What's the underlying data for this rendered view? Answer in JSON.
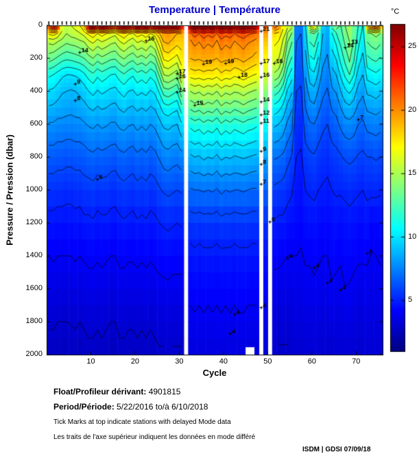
{
  "title": "Temperature | Température",
  "colors": {
    "title": "#0000cc",
    "contour": "#000000",
    "background": "#ffffff"
  },
  "axes": {
    "x": {
      "label": "Cycle",
      "ticks": [
        10,
        20,
        30,
        40,
        50,
        60,
        70
      ],
      "min": 0,
      "max": 76
    },
    "y": {
      "label": "Pressure / Pression (dbar)",
      "ticks": [
        0,
        200,
        400,
        600,
        800,
        1000,
        1200,
        1400,
        1600,
        1800,
        2000
      ],
      "min": 0,
      "max": 2000
    }
  },
  "colorbar": {
    "label": "°C",
    "ticks": [
      25,
      20,
      15,
      10,
      5
    ]
  },
  "footer": {
    "float_label": "Float/Profileur dérivant:",
    "float_value": "4901815",
    "period_label": "Period/Période:",
    "period_value": "5/22/2016  to/à  6/10/2018",
    "note_en": "Tick Marks at top indicate stations with delayed Mode data",
    "note_fr": "Les traits de l'axe supérieur indiquent les données en mode différé",
    "credit": "ISDM | GDSI  07/09/18"
  },
  "chart_data": {
    "type": "heatmap",
    "title": "Temperature | Température",
    "xlabel": "Cycle",
    "ylabel": "Pressure / Pression (dbar)",
    "x_range": [
      1,
      76
    ],
    "y_range": [
      0,
      2000
    ],
    "temp_range_c": [
      1,
      26.8
    ],
    "contour_interval_c": 1,
    "delayed_mode_ticks": "all cycles with data",
    "missing_cycles": [
      32,
      49,
      51
    ],
    "partial_missing": {
      "cycles": [
        46,
        47
      ],
      "below_dbar": 1955
    },
    "pressure_levels": [
      0,
      50,
      100,
      200,
      300,
      400,
      500,
      600,
      800,
      1000,
      1200,
      1400,
      1700,
      2000
    ],
    "profiles": [
      [
        22,
        17.2,
        15.2,
        13.5,
        11.2,
        9.9,
        8.9,
        7.9,
        6.5,
        5.5,
        4.7,
        4.0,
        3.3,
        2.7
      ],
      [
        24,
        17.5,
        15.4,
        13.2,
        11.0,
        9.8,
        8.8,
        7.9,
        6.5,
        5.5,
        4.7,
        4.1,
        3.3,
        2.7
      ],
      [
        23,
        16.8,
        15.0,
        12.8,
        10.6,
        9.5,
        8.6,
        7.7,
        6.4,
        5.4,
        4.6,
        4.0,
        3.2,
        2.6
      ],
      [
        16.5,
        15.8,
        14.6,
        12.4,
        10.2,
        9.1,
        8.5,
        7.7,
        6.4,
        5.4,
        4.6,
        4.0,
        3.2,
        2.6
      ],
      [
        15.5,
        15.0,
        14.2,
        12.2,
        10.0,
        9.0,
        8.4,
        7.6,
        6.3,
        5.3,
        4.6,
        4.0,
        3.2,
        2.6
      ],
      [
        16,
        15.4,
        14.4,
        12.3,
        10.0,
        8.9,
        8.3,
        7.6,
        6.3,
        5.3,
        4.6,
        4.0,
        3.2,
        2.7
      ],
      [
        16.5,
        15.6,
        14.5,
        12.5,
        10.1,
        9.0,
        8.4,
        7.7,
        6.4,
        5.4,
        4.7,
        4.1,
        3.3,
        2.7
      ],
      [
        17,
        15.9,
        14.8,
        12.7,
        10.3,
        9.2,
        8.5,
        7.7,
        6.4,
        5.4,
        4.6,
        4.0,
        3.2,
        2.6
      ],
      [
        19,
        16.4,
        15.0,
        13.0,
        10.8,
        9.5,
        8.7,
        7.9,
        6.5,
        5.6,
        4.8,
        4.1,
        3.3,
        2.7
      ],
      [
        25,
        17.2,
        15.8,
        13.6,
        11.4,
        10.0,
        9.0,
        8.1,
        6.7,
        5.6,
        4.8,
        4.2,
        3.4,
        2.8
      ],
      [
        26,
        17.8,
        16.2,
        14.0,
        11.8,
        10.3,
        9.2,
        8.2,
        6.8,
        5.7,
        4.9,
        4.2,
        3.4,
        2.8
      ],
      [
        24,
        16.9,
        15.6,
        13.4,
        11.2,
        9.9,
        8.9,
        8.0,
        6.6,
        5.5,
        4.7,
        4.1,
        3.3,
        2.7
      ],
      [
        26,
        17.5,
        16.0,
        13.8,
        11.6,
        10.2,
        9.1,
        8.2,
        6.7,
        5.6,
        4.8,
        4.2,
        3.4,
        2.8
      ],
      [
        25,
        17.0,
        15.7,
        13.5,
        11.3,
        10.0,
        9.0,
        8.1,
        6.6,
        5.6,
        4.8,
        4.1,
        3.3,
        2.7
      ],
      [
        24,
        16.6,
        15.3,
        13.2,
        11.0,
        9.8,
        8.8,
        7.9,
        6.5,
        5.4,
        4.7,
        4.0,
        3.2,
        2.6
      ],
      [
        23,
        16.3,
        15.1,
        13.1,
        10.9,
        9.7,
        8.7,
        7.9,
        6.4,
        5.4,
        4.6,
        4.0,
        3.2,
        2.6
      ],
      [
        25,
        17.3,
        15.9,
        13.7,
        11.5,
        10.1,
        9.1,
        8.2,
        6.7,
        5.6,
        4.8,
        4.2,
        3.4,
        2.8
      ],
      [
        26,
        17.9,
        16.3,
        14.1,
        11.9,
        10.4,
        9.3,
        8.3,
        6.8,
        5.7,
        4.9,
        4.2,
        3.4,
        2.8
      ],
      [
        25,
        17.1,
        15.8,
        13.6,
        11.4,
        10.0,
        9.0,
        8.1,
        6.6,
        5.6,
        4.8,
        4.1,
        3.3,
        2.7
      ],
      [
        24,
        16.7,
        15.4,
        13.3,
        11.1,
        9.9,
        8.9,
        8.0,
        6.5,
        5.5,
        4.7,
        4.1,
        3.3,
        2.7
      ],
      [
        26,
        17.6,
        16.1,
        13.9,
        11.7,
        10.3,
        9.2,
        8.3,
        6.8,
        5.7,
        4.9,
        4.2,
        3.4,
        2.8
      ],
      [
        25,
        17.2,
        15.8,
        13.6,
        11.4,
        10.1,
        9.0,
        8.1,
        6.6,
        5.6,
        4.8,
        4.1,
        3.3,
        2.7
      ],
      [
        26,
        17.7,
        16.2,
        14.0,
        11.8,
        10.3,
        9.2,
        8.3,
        6.8,
        5.7,
        4.9,
        4.2,
        3.4,
        2.8
      ],
      [
        24,
        16.8,
        15.5,
        13.4,
        11.2,
        9.9,
        8.9,
        8.0,
        6.5,
        5.5,
        4.7,
        4.1,
        3.3,
        2.7
      ],
      [
        25,
        17.4,
        16.0,
        13.8,
        11.6,
        10.2,
        9.1,
        8.2,
        6.7,
        5.6,
        4.8,
        4.2,
        3.4,
        2.8
      ],
      [
        26,
        18.5,
        17.5,
        15.5,
        13.2,
        11.2,
        9.7,
        8.7,
        7.1,
        5.9,
        5.0,
        4.3,
        3.5,
        2.9
      ],
      [
        26.5,
        19.5,
        19.0,
        17.2,
        15.0,
        12.5,
        10.5,
        9.2,
        7.5,
        6.1,
        5.1,
        4.4,
        3.5,
        2.9
      ],
      [
        26,
        19.8,
        19.2,
        17.4,
        15.2,
        12.7,
        10.7,
        9.3,
        7.6,
        6.2,
        5.2,
        4.4,
        3.6,
        3.0
      ],
      [
        26.5,
        19.4,
        18.8,
        17.0,
        14.8,
        12.4,
        10.4,
        9.1,
        7.4,
        6.1,
        5.1,
        4.3,
        3.5,
        2.9
      ],
      [
        26,
        19.0,
        18.4,
        16.6,
        14.4,
        12.0,
        10.2,
        9.0,
        7.3,
        6.0,
        5.0,
        4.3,
        3.5,
        2.9
      ],
      [
        24,
        19.0,
        18.4,
        17.6,
        16.2,
        13.8,
        11.6,
        9.9,
        7.6,
        6.1,
        5.1,
        4.3,
        3.5,
        2.9
      ],
      null,
      [
        26,
        20.5,
        19.8,
        19.0,
        17.4,
        15.0,
        13.2,
        11.3,
        8.8,
        6.9,
        5.5,
        4.7,
        4.0,
        3.4
      ],
      [
        27,
        21.5,
        20.3,
        19.2,
        17.6,
        15.3,
        13.5,
        11.6,
        9.0,
        7.0,
        5.6,
        4.8,
        4.1,
        3.4
      ],
      [
        26.5,
        21.0,
        20.0,
        19.1,
        17.5,
        15.1,
        13.3,
        11.4,
        8.9,
        7.0,
        5.5,
        4.7,
        4.0,
        3.4
      ],
      [
        27,
        21.8,
        20.5,
        19.3,
        17.7,
        15.5,
        13.7,
        11.8,
        9.2,
        7.1,
        5.6,
        4.8,
        4.1,
        3.5
      ],
      [
        26.5,
        21.2,
        20.1,
        19.3,
        17.5,
        15.2,
        13.4,
        11.5,
        9.0,
        7.0,
        5.6,
        4.8,
        4.0,
        3.4
      ],
      [
        27,
        21.6,
        20.4,
        19.2,
        17.6,
        15.4,
        13.6,
        11.7,
        9.1,
        7.1,
        5.6,
        4.8,
        4.1,
        3.4
      ],
      [
        26,
        20.8,
        19.8,
        19.0,
        17.3,
        15.0,
        13.1,
        11.3,
        8.8,
        6.9,
        5.5,
        4.7,
        4.0,
        3.4
      ],
      [
        27,
        21.9,
        20.6,
        19.4,
        17.8,
        15.6,
        13.8,
        11.9,
        9.2,
        7.2,
        5.7,
        4.8,
        4.1,
        3.5
      ],
      [
        26.5,
        21.3,
        20.2,
        19.2,
        17.5,
        15.2,
        13.4,
        11.5,
        9.0,
        7.0,
        5.6,
        4.8,
        4.0,
        3.4
      ],
      [
        27,
        21.7,
        20.4,
        19.4,
        17.6,
        15.4,
        13.6,
        11.8,
        9.1,
        7.1,
        5.6,
        4.8,
        4.1,
        3.5
      ],
      [
        26,
        20.9,
        19.9,
        19.0,
        17.2,
        15.1,
        13.2,
        11.4,
        8.9,
        7.0,
        5.5,
        4.7,
        4.0,
        3.4
      ],
      [
        26.5,
        21.4,
        20.2,
        19.1,
        17.4,
        15.2,
        13.4,
        11.6,
        9.0,
        7.0,
        5.6,
        4.8,
        4.1,
        3.4
      ],
      [
        27,
        21.8,
        20.5,
        19.4,
        17.7,
        15.5,
        13.7,
        11.8,
        9.1,
        7.1,
        5.6,
        4.8,
        4.1,
        3.5
      ],
      [
        26.5,
        21.2,
        20.1,
        19.1,
        17.4,
        15.2,
        13.4,
        11.5,
        9.0,
        7.0,
        5.6,
        4.8,
        4.0,
        3.4
      ],
      [
        26,
        21.0,
        19.9,
        18.9,
        17.1,
        15.0,
        13.2,
        11.4,
        8.9,
        6.9,
        5.5,
        4.7,
        4.0,
        3.4
      ],
      [
        25.5,
        20.6,
        19.6,
        18.6,
        16.9,
        14.8,
        13.0,
        11.2,
        8.8,
        6.9,
        5.5,
        4.7,
        4.0,
        3.4
      ],
      null,
      [
        21.5,
        19.5,
        18.5,
        17.2,
        16.0,
        14.4,
        12.6,
        10.8,
        8.4,
        6.7,
        5.4,
        4.6,
        4.0,
        3.4
      ],
      null,
      [
        21,
        18.0,
        17.2,
        16.4,
        14.8,
        12.5,
        10.6,
        9.2,
        7.1,
        5.8,
        4.9,
        4.2,
        3.5,
        3.0
      ],
      [
        20,
        17.6,
        16.9,
        16.1,
        14.4,
        12.1,
        10.3,
        9.0,
        7.0,
        5.7,
        4.8,
        4.2,
        3.4,
        2.9
      ],
      [
        17.5,
        16.4,
        15.8,
        14.9,
        13.2,
        11.2,
        9.7,
        8.6,
        6.8,
        5.6,
        4.8,
        4.1,
        3.4,
        2.9
      ],
      [
        16.5,
        14.8,
        14.0,
        12.9,
        11.3,
        9.8,
        8.7,
        7.8,
        6.3,
        5.3,
        4.6,
        4.0,
        3.4,
        2.9
      ],
      [
        15.5,
        13.8,
        13.0,
        11.9,
        10.4,
        9.1,
        8.1,
        7.3,
        5.9,
        5.1,
        4.5,
        4.0,
        3.4,
        3.0
      ],
      [
        7.5,
        7.2,
        7.0,
        6.6,
        6.3,
        6.0,
        5.7,
        5.4,
        5.0,
        4.7,
        4.4,
        4.0,
        3.6,
        3.1
      ],
      [
        7.2,
        7.0,
        6.8,
        6.5,
        6.2,
        5.9,
        5.6,
        5.3,
        4.9,
        4.6,
        4.3,
        3.9,
        3.5,
        3.0
      ],
      [
        10,
        9.6,
        9.3,
        8.7,
        8.1,
        7.5,
        7.0,
        6.5,
        5.6,
        5.0,
        4.5,
        4.1,
        3.6,
        3.1
      ],
      [
        16.5,
        12.5,
        12.0,
        10.8,
        9.5,
        8.5,
        7.6,
        6.9,
        5.8,
        5.1,
        4.6,
        4.1,
        3.6,
        3.1
      ],
      [
        17.5,
        13.0,
        12.4,
        11.1,
        9.8,
        8.7,
        7.8,
        7.0,
        5.9,
        5.2,
        4.6,
        4.2,
        3.7,
        3.2
      ],
      [
        15,
        11.5,
        11.0,
        9.9,
        8.8,
        7.9,
        7.2,
        6.6,
        5.6,
        5.0,
        4.5,
        4.1,
        3.6,
        3.1
      ],
      [
        9.5,
        9.0,
        8.8,
        8.3,
        7.7,
        7.2,
        6.7,
        6.2,
        5.4,
        4.9,
        4.4,
        4.0,
        3.5,
        3.0
      ],
      [
        8.8,
        8.5,
        8.3,
        7.9,
        7.4,
        6.9,
        6.5,
        6.0,
        5.3,
        4.8,
        4.4,
        4.0,
        3.5,
        3.0
      ],
      [
        12.5,
        10.8,
        10.4,
        9.5,
        8.6,
        7.8,
        7.1,
        6.5,
        5.6,
        5.0,
        4.5,
        4.3,
        3.7,
        3.0
      ],
      [
        14,
        11.8,
        11.2,
        10.1,
        9.0,
        8.1,
        7.3,
        6.7,
        5.7,
        5.1,
        4.6,
        4.2,
        3.6,
        3.1
      ],
      [
        13,
        12.6,
        12.2,
        11.4,
        10.2,
        9.0,
        8.0,
        7.2,
        5.9,
        5.1,
        4.5,
        4.1,
        3.6,
        3.1
      ],
      [
        14,
        13.6,
        13.2,
        12.4,
        11.2,
        9.8,
        8.6,
        7.6,
        6.1,
        5.2,
        4.6,
        4.35,
        3.8,
        3.1
      ],
      [
        14.8,
        14.4,
        14.0,
        13.3,
        12.0,
        10.2,
        8.8,
        7.7,
        6.2,
        5.3,
        4.7,
        4.3,
        3.75,
        3.1
      ],
      [
        13.5,
        13.2,
        12.9,
        12.2,
        11.0,
        9.6,
        8.4,
        7.5,
        6.1,
        5.2,
        4.6,
        4.2,
        3.6,
        3.1
      ],
      [
        12,
        11.6,
        11.3,
        10.6,
        9.6,
        8.6,
        7.8,
        7.0,
        5.9,
        5.1,
        4.5,
        4.1,
        3.5,
        3.0
      ],
      [
        11,
        10.7,
        10.4,
        9.8,
        9.0,
        8.2,
        7.5,
        6.8,
        5.8,
        5.0,
        4.5,
        4.1,
        3.5,
        3.0
      ],
      [
        19,
        13.5,
        13.0,
        11.8,
        10.4,
        9.2,
        8.2,
        7.3,
        6.0,
        5.2,
        4.6,
        4.1,
        3.6,
        3.1
      ],
      [
        21,
        14.0,
        13.4,
        12.1,
        10.6,
        9.3,
        8.3,
        7.4,
        6.0,
        5.2,
        4.3,
        3.95,
        3.5,
        3.1
      ],
      [
        22,
        14.3,
        13.6,
        12.3,
        10.8,
        9.5,
        8.4,
        7.5,
        6.1,
        5.2,
        4.35,
        4.0,
        3.55,
        3.15
      ],
      [
        20,
        13.8,
        13.2,
        11.9,
        10.5,
        9.2,
        8.2,
        7.3,
        6.0,
        5.1,
        4.5,
        4.1,
        3.6,
        3.1
      ]
    ],
    "contour_labels": [
      [
        19,
        37,
        220
      ],
      [
        19,
        42,
        215
      ],
      [
        18,
        45,
        300
      ],
      [
        15,
        35,
        470
      ],
      [
        21,
        50,
        20
      ],
      [
        17,
        50,
        215
      ],
      [
        16,
        50,
        300
      ],
      [
        14,
        50,
        450
      ],
      [
        12,
        50,
        530
      ],
      [
        11,
        50,
        580
      ],
      [
        9,
        50,
        750
      ],
      [
        8,
        50,
        830
      ],
      [
        7,
        50,
        950
      ],
      [
        4,
        50,
        1700
      ],
      [
        17,
        31,
        280
      ],
      [
        16,
        31,
        310
      ],
      [
        14,
        31,
        390
      ],
      [
        16,
        24,
        80
      ],
      [
        14,
        9,
        150
      ],
      [
        9,
        8,
        340
      ],
      [
        8,
        8,
        440
      ],
      [
        6,
        13,
        920
      ],
      [
        16,
        53,
        215
      ],
      [
        14,
        69,
        120
      ],
      [
        13,
        70,
        100
      ],
      [
        7,
        72,
        560
      ],
      [
        4,
        56,
        1400
      ],
      [
        4,
        62,
        1460
      ],
      [
        4,
        65,
        1550
      ],
      [
        4,
        68,
        1590
      ],
      [
        4,
        74,
        1370
      ],
      [
        5,
        52,
        1180
      ],
      [
        4,
        44,
        1740
      ],
      [
        4,
        43,
        1860
      ]
    ]
  }
}
